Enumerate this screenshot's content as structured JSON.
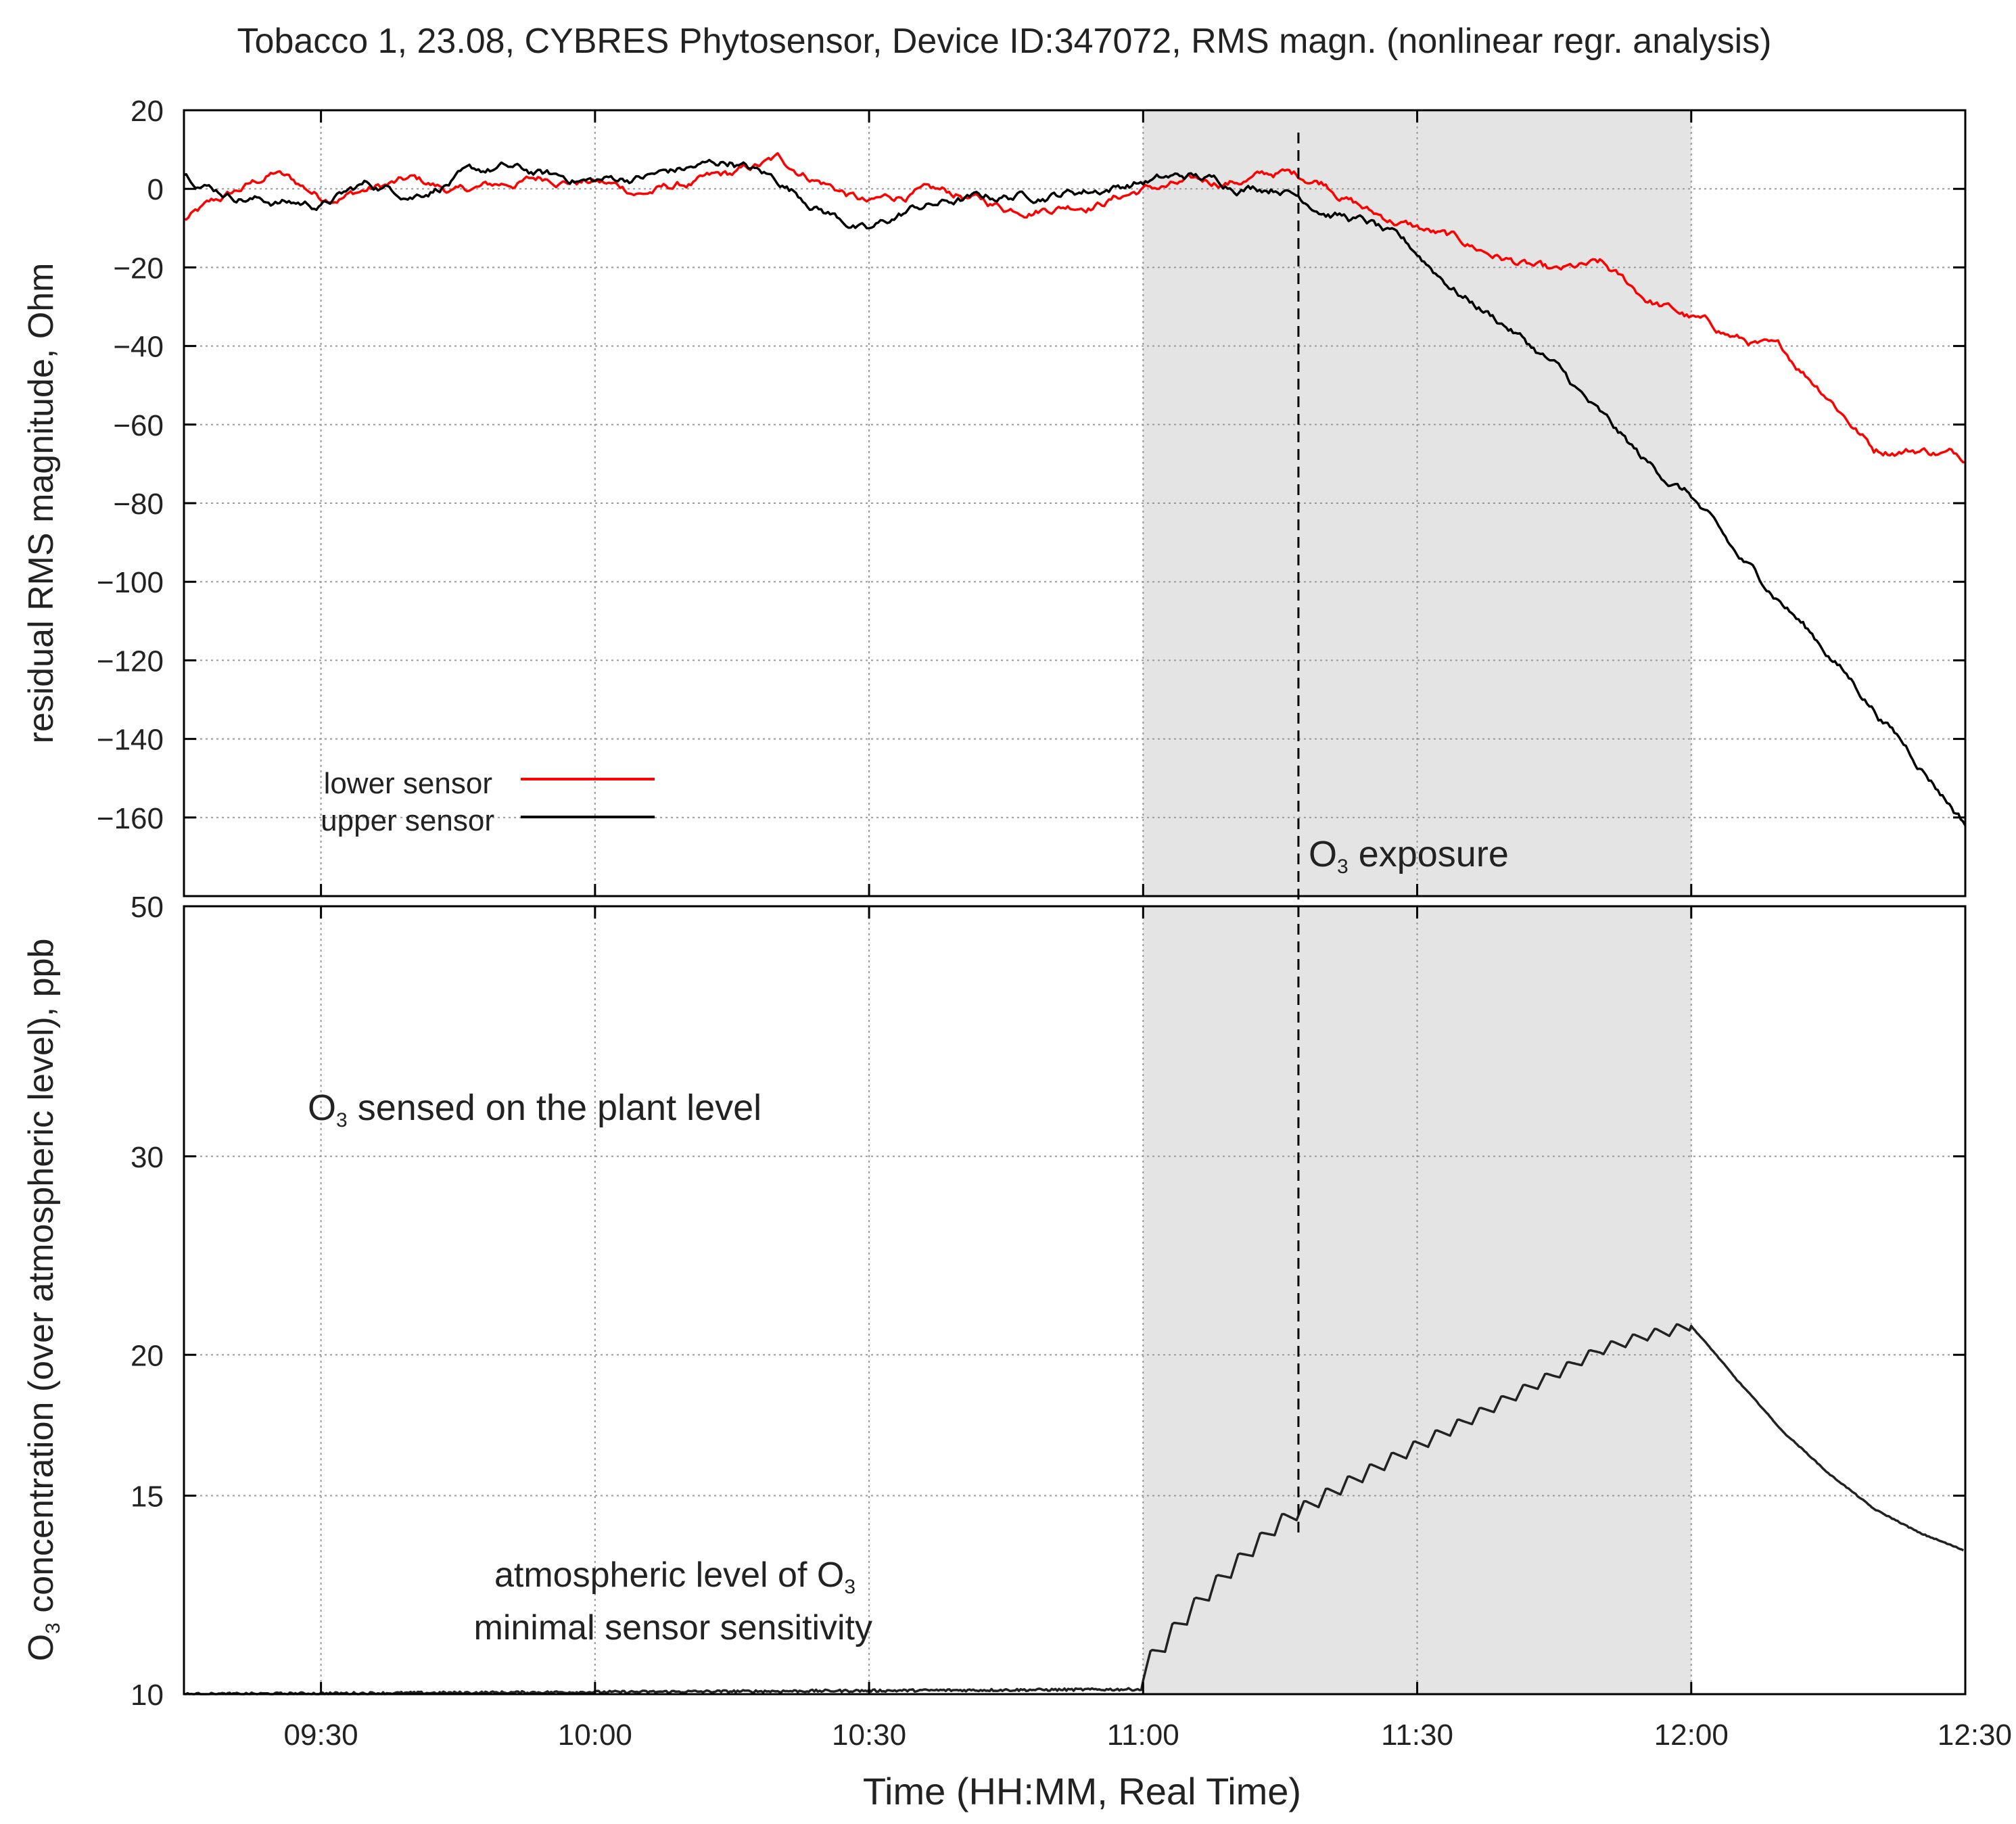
{
  "title": "Tobacco 1, 23.08, CYBRES Phytosensor, Device ID:347072, RMS magn. (nonlinear regr. analysis)",
  "xlabel": "Time (HH:MM, Real Time)",
  "exposure_label": "O3 exposure",
  "colors": {
    "lower": "#ff0000",
    "upper": "#000000",
    "shade": "#e4e4e4",
    "grid": "#999999"
  },
  "chart_data": [
    {
      "type": "line",
      "panel": "top",
      "title": "Tobacco 1, 23.08, CYBRES Phytosensor, Device ID:347072, RMS magn. (nonlinear regr. analysis)",
      "ylabel": "residual RMS magnitude, Ohm",
      "xlabel": "",
      "xlim": [
        "09:15",
        "12:30"
      ],
      "ylim": [
        -180,
        20
      ],
      "yticks": [
        "20",
        "0",
        "−20",
        "−40",
        "−60",
        "−80",
        "−100",
        "−120",
        "−140",
        "−160"
      ],
      "xticks": [
        "09:30",
        "10:00",
        "10:30",
        "11:00",
        "11:30",
        "12:00",
        "12:30"
      ],
      "legend": "bottom-left",
      "shaded_interval": [
        "11:00",
        "12:00"
      ],
      "vertical_marker": "11:17",
      "grid": true,
      "series": [
        {
          "name": "lower sensor",
          "x": [
            "09:15",
            "09:20",
            "09:25",
            "09:30",
            "09:35",
            "09:40",
            "09:45",
            "09:50",
            "09:55",
            "10:00",
            "10:05",
            "10:10",
            "10:15",
            "10:20",
            "10:25",
            "10:30",
            "10:35",
            "10:40",
            "10:45",
            "10:50",
            "10:55",
            "11:00",
            "11:05",
            "11:10",
            "11:15",
            "11:20",
            "11:25",
            "11:30",
            "11:35",
            "11:40",
            "11:45",
            "11:50",
            "11:55",
            "12:00",
            "12:05",
            "12:10",
            "12:15",
            "12:20",
            "12:25",
            "12:30"
          ],
          "y": [
            -8,
            -2,
            4,
            -2,
            0,
            2,
            -1,
            1,
            3,
            2,
            -1,
            1,
            3,
            7,
            2,
            -4,
            -1,
            -2,
            -5,
            -4,
            -3,
            0,
            1,
            2,
            4,
            2,
            -6,
            -10,
            -14,
            -18,
            -22,
            -20,
            -28,
            -33,
            -38,
            -42,
            -52,
            -66,
            -66,
            -68
          ]
        },
        {
          "name": "upper sensor",
          "x": [
            "09:15",
            "09:20",
            "09:25",
            "09:30",
            "09:35",
            "09:40",
            "09:45",
            "09:50",
            "09:55",
            "10:00",
            "10:05",
            "10:10",
            "10:15",
            "10:20",
            "10:25",
            "10:30",
            "10:35",
            "10:40",
            "10:45",
            "10:50",
            "10:55",
            "11:00",
            "11:05",
            "11:10",
            "11:15",
            "11:20",
            "11:25",
            "11:30",
            "11:35",
            "11:40",
            "11:45",
            "11:50",
            "11:55",
            "12:00",
            "12:05",
            "12:10",
            "12:15",
            "12:20",
            "12:25",
            "12:30"
          ],
          "y": [
            4,
            -1,
            -3,
            -4,
            1,
            -1,
            3,
            5,
            3,
            2,
            3,
            5,
            7,
            2,
            -5,
            -11,
            -5,
            -3,
            -2,
            -1,
            0,
            2,
            3,
            1,
            1,
            -5,
            -9,
            -17,
            -27,
            -35,
            -45,
            -58,
            -70,
            -78,
            -94,
            -105,
            -118,
            -132,
            -146,
            -161
          ]
        }
      ]
    },
    {
      "type": "line",
      "panel": "bottom",
      "ylabel": "O3 concentration (over atmospheric level), ppb",
      "xlabel": "Time (HH:MM, Real Time)",
      "xlim": [
        "09:15",
        "12:30"
      ],
      "ylim": [
        10,
        50
      ],
      "yscale": "log",
      "yticks": [
        "10",
        "15",
        "20",
        "30",
        "50"
      ],
      "xticks": [
        "09:30",
        "10:00",
        "10:30",
        "11:00",
        "11:30",
        "12:00",
        "12:30"
      ],
      "shaded_interval": [
        "11:00",
        "12:00"
      ],
      "vertical_marker": "11:17",
      "grid": true,
      "annotations": [
        "O3 sensed on the plant level",
        "atmospheric level of O3",
        "minimal sensor sensitivity"
      ],
      "series": [
        {
          "x": [
            "09:15",
            "11:00",
            "11:00",
            "11:05",
            "11:10",
            "11:15",
            "11:20",
            "11:25",
            "11:30",
            "11:35",
            "11:40",
            "11:45",
            "11:50",
            "11:55",
            "12:00",
            "12:05",
            "12:10",
            "12:15",
            "12:20",
            "12:25",
            "12:30"
          ],
          "y": [
            10.0,
            10.1,
            10.5,
            11.8,
            13.0,
            14.2,
            15.0,
            15.8,
            16.6,
            17.4,
            18.3,
            19.2,
            20.2,
            20.8,
            21.2,
            19.0,
            17.1,
            15.7,
            14.6,
            13.9,
            13.4
          ]
        }
      ]
    }
  ]
}
